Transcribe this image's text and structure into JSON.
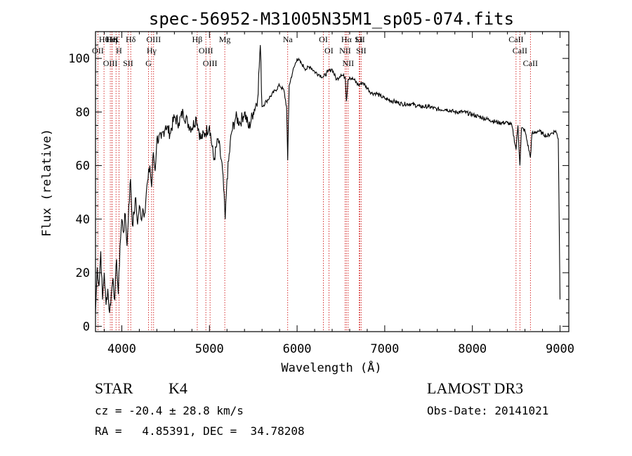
{
  "chart_data": {
    "type": "line",
    "title": "spec-56952-M31005N35M1_sp05-074.fits",
    "xlabel": "Wavelength (Å)",
    "ylabel": "Flux (relative)",
    "xlim": [
      3700,
      9100
    ],
    "ylim": [
      -2,
      110
    ],
    "xticks": [
      4000,
      5000,
      6000,
      7000,
      8000,
      9000
    ],
    "yticks": [
      0,
      20,
      40,
      60,
      80,
      100
    ],
    "series": [
      {
        "name": "flux",
        "x": [
          3700,
          3720,
          3740,
          3760,
          3780,
          3800,
          3820,
          3840,
          3860,
          3880,
          3900,
          3920,
          3940,
          3960,
          3980,
          4000,
          4020,
          4040,
          4060,
          4080,
          4100,
          4120,
          4140,
          4160,
          4180,
          4200,
          4220,
          4240,
          4260,
          4280,
          4300,
          4320,
          4340,
          4360,
          4380,
          4400,
          4450,
          4500,
          4550,
          4600,
          4650,
          4700,
          4750,
          4800,
          4850,
          4900,
          4950,
          5000,
          5050,
          5100,
          5150,
          5180,
          5200,
          5250,
          5300,
          5350,
          5400,
          5450,
          5500,
          5550,
          5580,
          5600,
          5650,
          5700,
          5750,
          5800,
          5850,
          5880,
          5893,
          5910,
          5950,
          6000,
          6050,
          6100,
          6150,
          6200,
          6250,
          6300,
          6350,
          6400,
          6450,
          6500,
          6550,
          6563,
          6580,
          6600,
          6650,
          6700,
          6750,
          6800,
          6850,
          6900,
          6950,
          7000,
          7100,
          7200,
          7300,
          7400,
          7500,
          7600,
          7700,
          7800,
          7900,
          8000,
          8100,
          8200,
          8300,
          8400,
          8450,
          8498,
          8520,
          8542,
          8560,
          8600,
          8662,
          8680,
          8700,
          8750,
          8800,
          8850,
          8900,
          8950,
          8980,
          9000
        ],
        "y": [
          5,
          22,
          15,
          28,
          10,
          20,
          8,
          14,
          5,
          12,
          18,
          10,
          25,
          12,
          30,
          40,
          35,
          42,
          30,
          45,
          55,
          38,
          42,
          48,
          38,
          45,
          40,
          44,
          42,
          50,
          55,
          60,
          52,
          65,
          58,
          70,
          70,
          75,
          72,
          78,
          76,
          80,
          76,
          74,
          78,
          70,
          72,
          75,
          62,
          70,
          58,
          40,
          55,
          72,
          78,
          76,
          80,
          74,
          80,
          85,
          105,
          82,
          84,
          86,
          88,
          90,
          88,
          82,
          62,
          90,
          95,
          100,
          98,
          96,
          97,
          95,
          94,
          93,
          95,
          96,
          92,
          94,
          93,
          84,
          92,
          93,
          92,
          90,
          91,
          89,
          87,
          87,
          86,
          85,
          84,
          83,
          83,
          82,
          82,
          81,
          81,
          80,
          80,
          79,
          78,
          77,
          76,
          76,
          75,
          66,
          75,
          60,
          74,
          73,
          63,
          72,
          72,
          73,
          72,
          71,
          72,
          73,
          70,
          10
        ]
      }
    ],
    "line_markers": [
      {
        "label": "Hθ",
        "wave": 3797
      },
      {
        "label": "OII",
        "wave": 3727
      },
      {
        "label": "OIII",
        "wave": 3869
      },
      {
        "label": "K",
        "wave": 3934
      },
      {
        "label": "H",
        "wave": 3968
      },
      {
        "label": "Hη",
        "wave": 3889
      },
      {
        "label": "HeI",
        "wave": 3889
      },
      {
        "label": "Hδ",
        "wave": 4102
      },
      {
        "label": "SII",
        "wave": 4072
      },
      {
        "label": "OIII",
        "wave": 4363
      },
      {
        "label": "Hγ",
        "wave": 4340
      },
      {
        "label": "G",
        "wave": 4305
      },
      {
        "label": "Hβ",
        "wave": 4861
      },
      {
        "label": "OIII",
        "wave": 4959
      },
      {
        "label": "OIII",
        "wave": 5007
      },
      {
        "label": "Mg",
        "wave": 5175
      },
      {
        "label": "Na",
        "wave": 5893
      },
      {
        "label": "OI",
        "wave": 6300
      },
      {
        "label": "OI",
        "wave": 6363
      },
      {
        "label": "Hα",
        "wave": 6563
      },
      {
        "label": "NII",
        "wave": 6548
      },
      {
        "label": "NII",
        "wave": 6583
      },
      {
        "label": "SII",
        "wave": 6716
      },
      {
        "label": "SII",
        "wave": 6731
      },
      {
        "label": "Li",
        "wave": 6708
      },
      {
        "label": "CaII",
        "wave": 8498
      },
      {
        "label": "CaII",
        "wave": 8542
      },
      {
        "label": "CaII",
        "wave": 8662
      }
    ]
  },
  "info": {
    "class": "STAR",
    "subclass": "K4",
    "survey": "LAMOST DR3",
    "cz": "cz = -20.4 ± 28.8 km/s",
    "obs_date": "Obs-Date: 20141021",
    "coords": "RA =   4.85391, DEC =  34.78208"
  },
  "colors": {
    "axis": "#000000",
    "spectrum": "#000000",
    "marker": "#cc0000"
  }
}
